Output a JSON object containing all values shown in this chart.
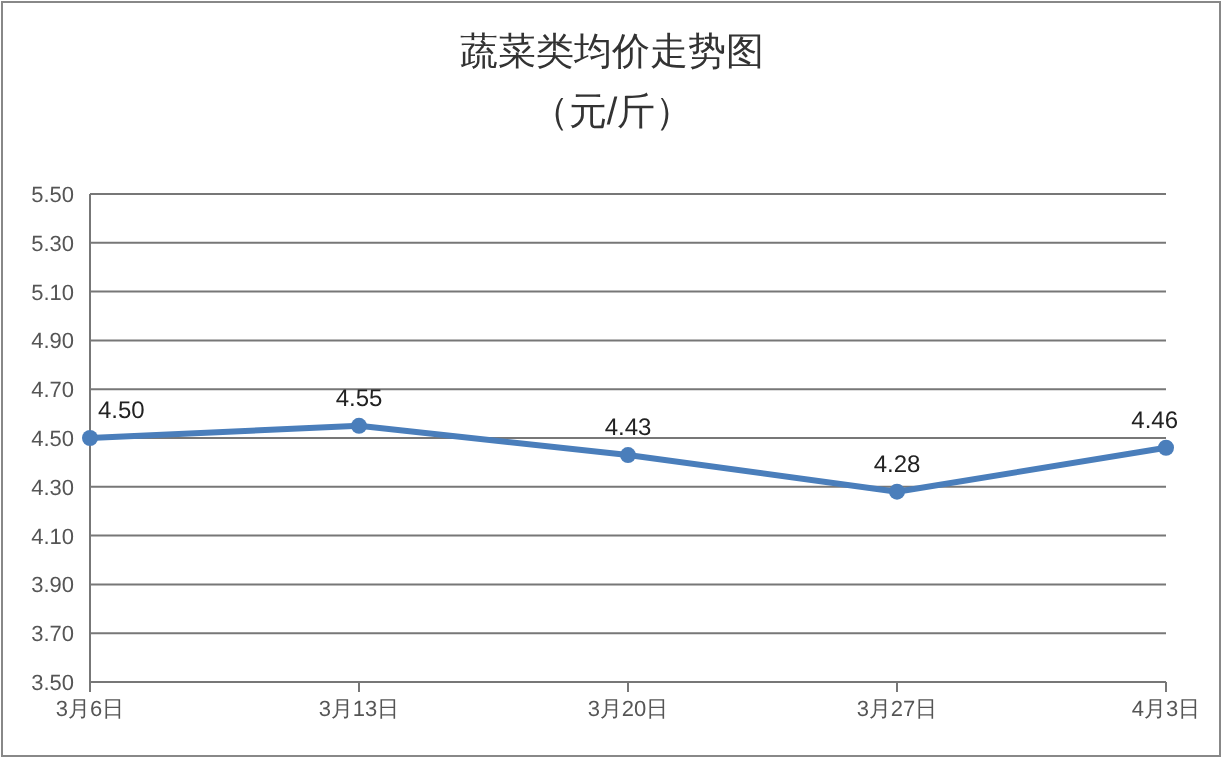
{
  "chart_data": {
    "type": "line",
    "title": "蔬菜类均价走势图",
    "subtitle": "（元/斤）",
    "categories": [
      "3月6日",
      "3月13日",
      "3月20日",
      "3月27日",
      "4月3日"
    ],
    "series": [
      {
        "color": "#4a7ebb",
        "values": [
          4.5,
          4.55,
          4.43,
          4.28,
          4.46
        ]
      }
    ],
    "value_labels": [
      "4.50",
      "4.55",
      "4.43",
      "4.28",
      "4.46"
    ],
    "ylim": [
      3.5,
      5.5
    ],
    "yticks": [
      {
        "value": 3.5,
        "label": "3.50"
      },
      {
        "value": 3.7,
        "label": "3.70"
      },
      {
        "value": 3.9,
        "label": "3.90"
      },
      {
        "value": 4.1,
        "label": "4.10"
      },
      {
        "value": 4.3,
        "label": "4.30"
      },
      {
        "value": 4.5,
        "label": "4.50"
      },
      {
        "value": 4.7,
        "label": "4.70"
      },
      {
        "value": 4.9,
        "label": "4.90"
      },
      {
        "value": 5.1,
        "label": "5.10"
      },
      {
        "value": 5.3,
        "label": "5.30"
      },
      {
        "value": 5.5,
        "label": "5.50"
      }
    ],
    "grid": "y",
    "marker": "circle",
    "line_style": "solid"
  }
}
